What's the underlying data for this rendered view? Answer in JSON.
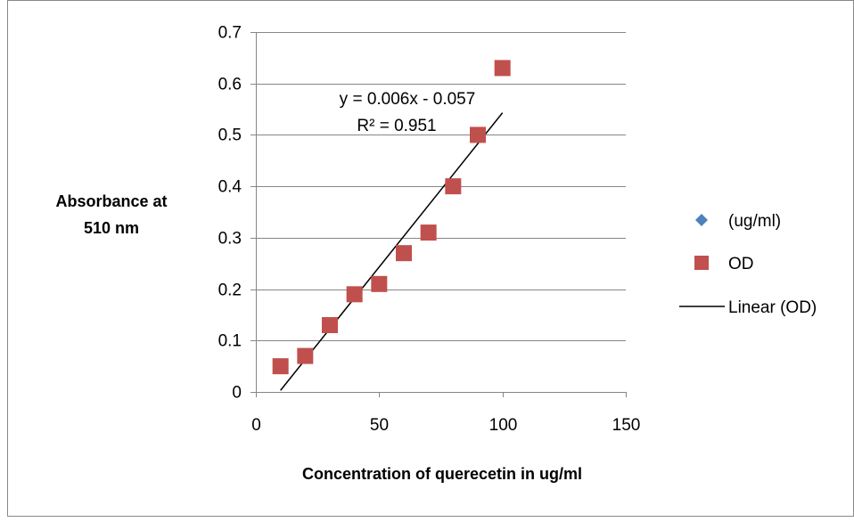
{
  "chart_data": {
    "type": "scatter",
    "title": "",
    "xlabel": "Concentration of querecetin in ug/ml",
    "ylabel_lines": [
      "Absorbance at",
      "510 nm"
    ],
    "xlim": [
      0,
      150
    ],
    "ylim": [
      0,
      0.7
    ],
    "x_ticks": [
      0,
      50,
      100,
      150
    ],
    "x_tick_labels": [
      "0",
      "50",
      "100",
      "150"
    ],
    "y_ticks": [
      0,
      0.1,
      0.2,
      0.3,
      0.4,
      0.5,
      0.6,
      0.7
    ],
    "y_tick_labels": [
      "0",
      "0.1",
      "0.2",
      "0.3",
      "0.4",
      "0.5",
      "0.6",
      "0.7"
    ],
    "grid": {
      "horizontal": true,
      "vertical": false
    },
    "series": [
      {
        "name": "(ug/ml)",
        "marker": "diamond",
        "color": "#4f81bd",
        "points": []
      },
      {
        "name": "OD",
        "marker": "square",
        "color": "#c0504d",
        "points": [
          {
            "x": 10,
            "y": 0.05
          },
          {
            "x": 20,
            "y": 0.07
          },
          {
            "x": 30,
            "y": 0.13
          },
          {
            "x": 40,
            "y": 0.19
          },
          {
            "x": 50,
            "y": 0.21
          },
          {
            "x": 60,
            "y": 0.27
          },
          {
            "x": 70,
            "y": 0.31
          },
          {
            "x": 80,
            "y": 0.4
          },
          {
            "x": 90,
            "y": 0.5
          },
          {
            "x": 100,
            "y": 0.63
          }
        ]
      }
    ],
    "trendline": {
      "name": "Linear (OD)",
      "color": "#000000",
      "slope": 0.006,
      "intercept": -0.057,
      "x_range": [
        10,
        100
      ],
      "equation_label": "y = 0.006x - 0.057",
      "r2_label": "R² = 0.951"
    },
    "legend": {
      "position": "right",
      "entries": [
        {
          "label": "(ug/ml)",
          "symbol": "diamond",
          "color": "#4f81bd"
        },
        {
          "label": "OD",
          "symbol": "square",
          "color": "#c0504d"
        },
        {
          "label": "Linear (OD)",
          "symbol": "line",
          "color": "#000000"
        }
      ]
    }
  }
}
